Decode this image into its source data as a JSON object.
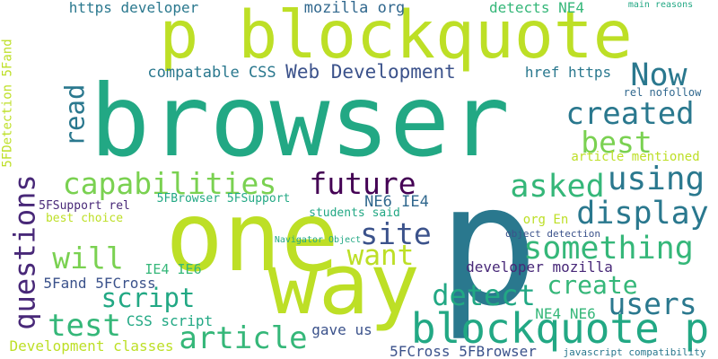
{
  "background": "#ffffff",
  "words": [
    {
      "text": "browser",
      "color": "#22a884",
      "rotated": false
    },
    {
      "text": "p blockquote",
      "color": "#bddf26",
      "rotated": false
    },
    {
      "text": "p",
      "color": "#2a788e",
      "rotated": false
    },
    {
      "text": "one",
      "color": "#bddf26",
      "rotated": false
    },
    {
      "text": "way",
      "color": "#bddf26",
      "rotated": false
    },
    {
      "text": "blockquote p",
      "color": "#22a884",
      "rotated": false
    },
    {
      "text": "article",
      "color": "#35b779",
      "rotated": false
    },
    {
      "text": "capabilities",
      "color": "#7ad151",
      "rotated": false
    },
    {
      "text": "asked",
      "color": "#35b779",
      "rotated": false
    },
    {
      "text": "using",
      "color": "#2a788e",
      "rotated": false
    },
    {
      "text": "display",
      "color": "#2a788e",
      "rotated": false
    },
    {
      "text": "created",
      "color": "#2a788e",
      "rotated": false
    },
    {
      "text": "best",
      "color": "#7ad151",
      "rotated": false
    },
    {
      "text": "Now",
      "color": "#2a788e",
      "rotated": false
    },
    {
      "text": "future",
      "color": "#440154",
      "rotated": false
    },
    {
      "text": "site",
      "color": "#3b528b",
      "rotated": false
    },
    {
      "text": "want",
      "color": "#bddf26",
      "rotated": false
    },
    {
      "text": "something",
      "color": "#35b779",
      "rotated": false
    },
    {
      "text": "create",
      "color": "#35b779",
      "rotated": false
    },
    {
      "text": "users",
      "color": "#2a788e",
      "rotated": false
    },
    {
      "text": "detect",
      "color": "#22a884",
      "rotated": false
    },
    {
      "text": "script",
      "color": "#22a884",
      "rotated": false
    },
    {
      "text": "will",
      "color": "#7ad151",
      "rotated": false
    },
    {
      "text": "test",
      "color": "#35b779",
      "rotated": false
    },
    {
      "text": "questions",
      "color": "#482878",
      "rotated": true
    },
    {
      "text": "read",
      "color": "#2a788e",
      "rotated": true
    },
    {
      "text": "Web Development",
      "color": "#3b528b",
      "rotated": false
    },
    {
      "text": "compatable CSS",
      "color": "#2a788e",
      "rotated": false
    },
    {
      "text": "https developer",
      "color": "#2a788e",
      "rotated": false
    },
    {
      "text": "mozilla org",
      "color": "#31688e",
      "rotated": false
    },
    {
      "text": "detects NE4",
      "color": "#35b779",
      "rotated": false
    },
    {
      "text": "main reasons",
      "color": "#22a884",
      "rotated": false
    },
    {
      "text": "href https",
      "color": "#2a788e",
      "rotated": false
    },
    {
      "text": "rel nofollow",
      "color": "#31688e",
      "rotated": false
    },
    {
      "text": "article mentioned",
      "color": "#bddf26",
      "rotated": false
    },
    {
      "text": "NE6 IE4",
      "color": "#31688e",
      "rotated": false
    },
    {
      "text": "5FBrowser 5FSupport",
      "color": "#22a884",
      "rotated": false
    },
    {
      "text": "5FSupport rel",
      "color": "#482878",
      "rotated": false
    },
    {
      "text": "best choice",
      "color": "#bddf26",
      "rotated": false
    },
    {
      "text": "students said",
      "color": "#22a884",
      "rotated": false
    },
    {
      "text": "org En",
      "color": "#bddf26",
      "rotated": false
    },
    {
      "text": "object detection",
      "color": "#3b528b",
      "rotated": false
    },
    {
      "text": "Navigator Object",
      "color": "#22a884",
      "rotated": false
    },
    {
      "text": "IE4 IE6",
      "color": "#35b779",
      "rotated": false
    },
    {
      "text": "developer mozilla",
      "color": "#482878",
      "rotated": false
    },
    {
      "text": "5Fand 5FCross",
      "color": "#3b528b",
      "rotated": false
    },
    {
      "text": "CSS script",
      "color": "#22a884",
      "rotated": false
    },
    {
      "text": "NE4 NE6",
      "color": "#35b779",
      "rotated": false
    },
    {
      "text": "gave us",
      "color": "#3b528b",
      "rotated": false
    },
    {
      "text": "Development classes",
      "color": "#bddf26",
      "rotated": false
    },
    {
      "text": "5FCross 5FBrowser",
      "color": "#3b528b",
      "rotated": false
    },
    {
      "text": "javascript compatibility",
      "color": "#2a788e",
      "rotated": false
    },
    {
      "text": "5FDetection 5Fand",
      "color": "#bddf26",
      "rotated": true
    }
  ]
}
